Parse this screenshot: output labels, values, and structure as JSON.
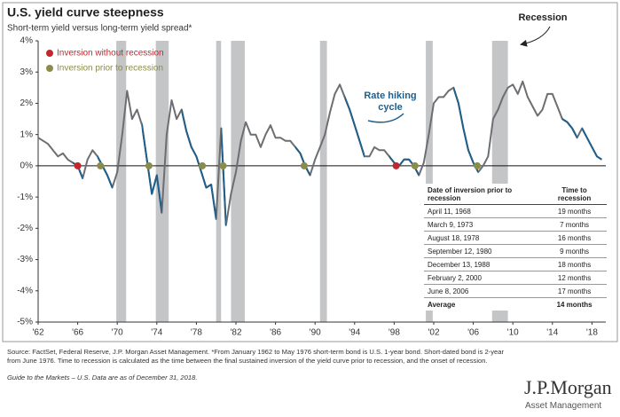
{
  "chart_data": {
    "type": "line",
    "title": "U.S. yield curve steepness",
    "subtitle": "Short-term yield versus long-term yield spread*",
    "x": [
      1962,
      1962.5,
      1963,
      1963.5,
      1964,
      1964.5,
      1965,
      1965.5,
      1966,
      1966.5,
      1967,
      1967.5,
      1968,
      1968.5,
      1969,
      1969.5,
      1970,
      1970.5,
      1971,
      1971.5,
      1972,
      1972.5,
      1973,
      1973.5,
      1974,
      1974.5,
      1975,
      1975.5,
      1976,
      1976.5,
      1977,
      1977.5,
      1978,
      1978.5,
      1979,
      1979.5,
      1980,
      1980.5,
      1981,
      1981.5,
      1982,
      1982.5,
      1983,
      1983.5,
      1984,
      1984.5,
      1985,
      1985.5,
      1986,
      1986.5,
      1987,
      1987.5,
      1988,
      1988.5,
      1989,
      1989.5,
      1990,
      1990.5,
      1991,
      1991.5,
      1992,
      1992.5,
      1993,
      1993.5,
      1994,
      1994.5,
      1995,
      1995.5,
      1996,
      1996.5,
      1997,
      1997.5,
      1998,
      1998.5,
      1999,
      1999.5,
      2000,
      2000.5,
      2001,
      2001.5,
      2002,
      2002.5,
      2003,
      2003.5,
      2004,
      2004.5,
      2005,
      2005.5,
      2006,
      2006.5,
      2007,
      2007.5,
      2008,
      2008.5,
      2009,
      2009.5,
      2010,
      2010.5,
      2011,
      2011.5,
      2012,
      2012.5,
      2013,
      2013.5,
      2014,
      2014.5,
      2015,
      2015.5,
      2016,
      2016.5,
      2017,
      2017.5,
      2018,
      2018.5,
      2019
    ],
    "series": [
      {
        "color": "#6d6e71",
        "values": [
          0.9,
          0.8,
          0.7,
          0.5,
          0.3,
          0.4,
          0.2,
          0.1,
          0.0,
          -0.4,
          0.2,
          0.5,
          0.3,
          0.0,
          -0.3,
          -0.7,
          -0.2,
          1.0,
          2.4,
          1.5,
          1.8,
          1.3,
          0.2,
          -0.9,
          -0.3,
          -1.5,
          1.0,
          2.1,
          1.5,
          1.8,
          1.1,
          0.6,
          0.3,
          -0.2,
          -0.7,
          -0.6,
          -1.7,
          1.2,
          -1.9,
          -0.9,
          -0.2,
          0.8,
          1.4,
          1.0,
          1.0,
          0.6,
          1.0,
          1.3,
          0.9,
          0.9,
          0.8,
          0.8,
          0.6,
          0.4,
          0.0,
          -0.3,
          0.2,
          0.6,
          1.0,
          1.7,
          2.3,
          2.6,
          2.2,
          1.8,
          1.3,
          0.8,
          0.3,
          0.3,
          0.6,
          0.5,
          0.5,
          0.3,
          0.1,
          0.0,
          0.2,
          0.2,
          0.0,
          -0.3,
          0.1,
          1.0,
          2.0,
          2.2,
          2.2,
          2.4,
          2.5,
          2.0,
          1.2,
          0.5,
          0.1,
          -0.2,
          0.0,
          0.3,
          1.5,
          1.8,
          2.2,
          2.5,
          2.6,
          2.3,
          2.7,
          2.2,
          1.9,
          1.6,
          1.8,
          2.3,
          2.3,
          1.9,
          1.5,
          1.4,
          1.2,
          0.9,
          1.2,
          0.9,
          0.6,
          0.3,
          0.2
        ]
      }
    ],
    "rate_hiking_cycles": {
      "color": "#1f5f8b",
      "ranges": [
        [
          1965.5,
          1966.5
        ],
        [
          1968,
          1969.5
        ],
        [
          1972.5,
          1974.5
        ],
        [
          1976.5,
          1980
        ],
        [
          1980.5,
          1981
        ],
        [
          1988,
          1989.5
        ],
        [
          1993,
          1995
        ],
        [
          1997.5,
          2000.5
        ],
        [
          2004,
          2006.5
        ],
        [
          2015,
          2016.5
        ],
        [
          2017,
          2019
        ]
      ]
    },
    "recessions": {
      "color": "#c4c5c7",
      "label": "Recession",
      "ranges": [
        [
          1969.9,
          1970.9
        ],
        [
          1973.9,
          1975.2
        ],
        [
          1980,
          1980.5
        ],
        [
          1981.5,
          1982.9
        ],
        [
          1990.5,
          1991.2
        ],
        [
          2001.2,
          2001.9
        ],
        [
          2007.9,
          2009.5
        ]
      ]
    },
    "markers": [
      {
        "name": "Inversion without recession",
        "color": "#c1272d",
        "x": [
          1966,
          1998.2
        ],
        "values": [
          0,
          0
        ]
      },
      {
        "name": "Inversion prior to recession",
        "color": "#8a8d4a",
        "x": [
          1968.3,
          1973.2,
          1978.6,
          1980.7,
          1988.9,
          2000.1,
          2006.4
        ],
        "values": [
          0,
          0,
          0,
          0,
          0,
          0,
          0
        ]
      }
    ],
    "annotation": "Rate hiking cycle",
    "xlim": [
      1962,
      2019.4
    ],
    "xticks": [
      {
        "value": 1962,
        "label": "'62"
      },
      {
        "value": 1966,
        "label": "'66"
      },
      {
        "value": 1970,
        "label": "'70"
      },
      {
        "value": 1974,
        "label": "'74"
      },
      {
        "value": 1978,
        "label": "'78"
      },
      {
        "value": 1982,
        "label": "'82"
      },
      {
        "value": 1986,
        "label": "'86"
      },
      {
        "value": 1990,
        "label": "'90"
      },
      {
        "value": 1994,
        "label": "'94"
      },
      {
        "value": 1998,
        "label": "'98"
      },
      {
        "value": 2002,
        "label": "'02"
      },
      {
        "value": 2006,
        "label": "'06"
      },
      {
        "value": 2010,
        "label": "'10"
      },
      {
        "value": 2014,
        "label": "'14"
      },
      {
        "value": 2018,
        "label": "'18"
      }
    ],
    "ylim": [
      -5,
      4
    ],
    "yticks": [
      {
        "value": 4,
        "label": "4%"
      },
      {
        "value": 3,
        "label": "3%"
      },
      {
        "value": 2,
        "label": "2%"
      },
      {
        "value": 1,
        "label": "1%"
      },
      {
        "value": 0,
        "label": "0%"
      },
      {
        "value": -1,
        "label": "-1%"
      },
      {
        "value": -2,
        "label": "-2%"
      },
      {
        "value": -3,
        "label": "-3%"
      },
      {
        "value": -4,
        "label": "-4%"
      },
      {
        "value": -5,
        "label": "-5%"
      }
    ],
    "table": {
      "header": [
        "Date of inversion prior to recession",
        "Time to recession"
      ],
      "rows": [
        [
          "April 11, 1968",
          "19 months"
        ],
        [
          "March 9, 1973",
          "7 months"
        ],
        [
          "August 18, 1978",
          "16 months"
        ],
        [
          "September 12, 1980",
          "9 months"
        ],
        [
          "December 13, 1988",
          "18 months"
        ],
        [
          "February 2, 2000",
          "12 months"
        ],
        [
          "June 8, 2006",
          "17 months"
        ]
      ],
      "footer": [
        "Average",
        "14 months"
      ]
    }
  },
  "source": "Source: FactSet, Federal Reserve, J.P. Morgan Asset Management. *From January 1962 to May 1976 short-term bond is U.S. 1-year bond. Short-dated bond is 2-year from June 1976. Time to recession is calculated as the time between the final sustained inversion of the yield curve prior to recession, and the onset of recession.",
  "guide": "Guide to the Markets – U.S. Data are as of December 31, 2018.",
  "logo": {
    "name": "J.P.Morgan",
    "subtitle": "Asset Management"
  }
}
